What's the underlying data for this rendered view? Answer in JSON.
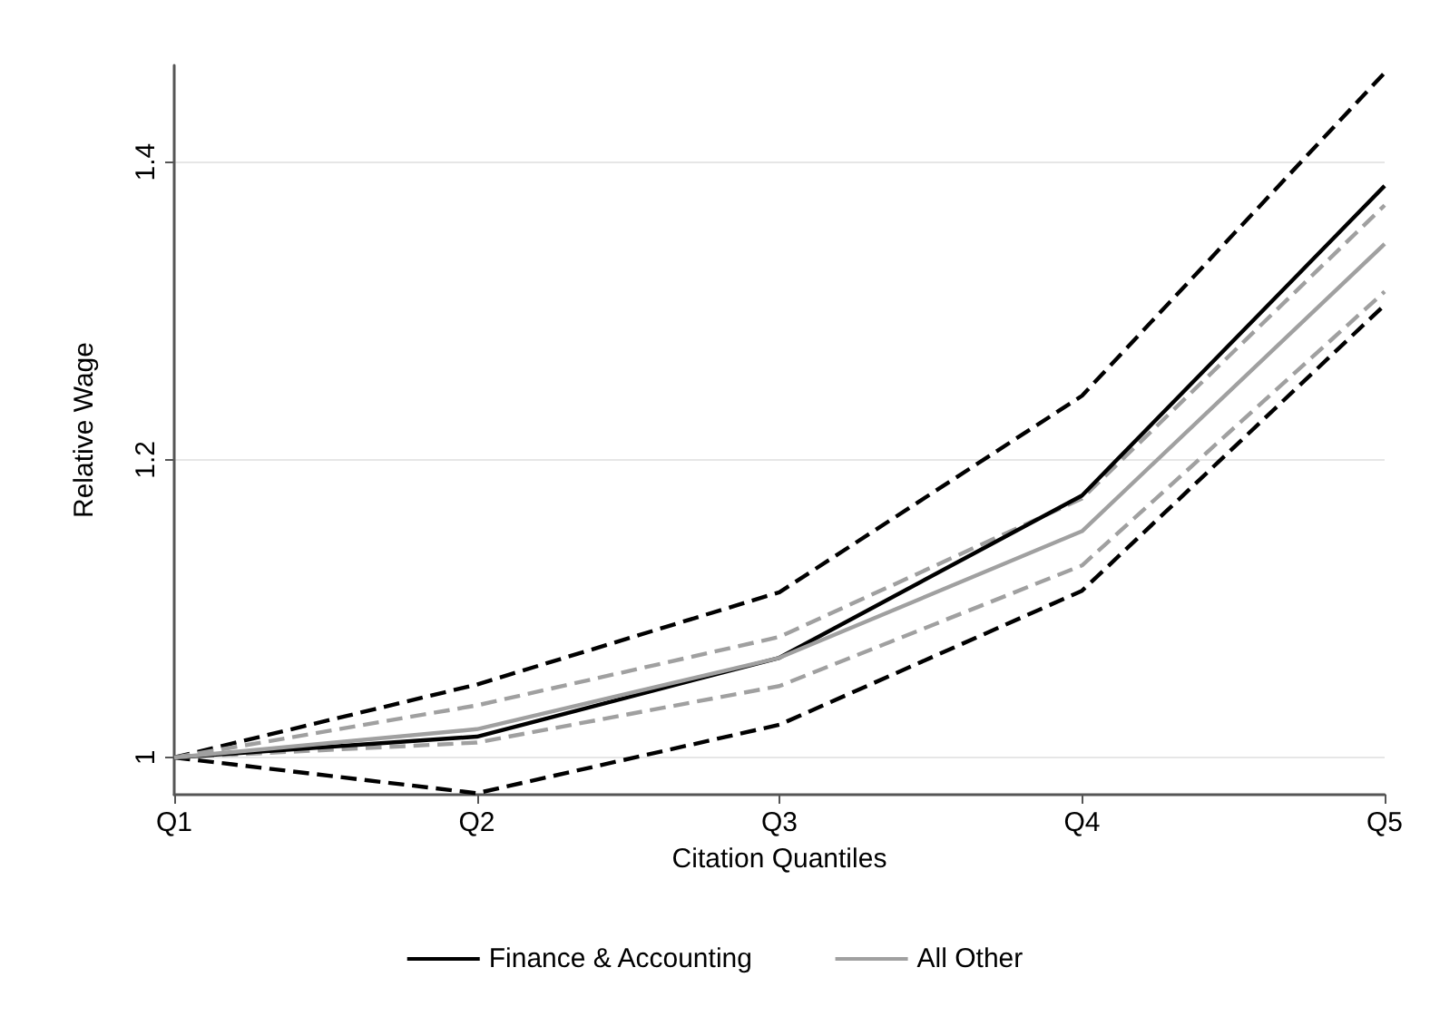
{
  "chart_data": {
    "type": "line",
    "xlabel": "Citation Quantiles",
    "ylabel": "Relative Wage",
    "categories": [
      "Q1",
      "Q2",
      "Q3",
      "Q4",
      "Q5"
    ],
    "series": [
      {
        "name": "Finance & Accounting",
        "color": "#000000",
        "values": [
          1,
          1.014,
          1.067,
          1.176,
          1.384
        ]
      },
      {
        "name": "All Other",
        "color": "#a0a0a0",
        "values": [
          1,
          1.019,
          1.067,
          1.152,
          1.345
        ]
      },
      {
        "color": "#000000",
        "line_style": "dashed",
        "values": [
          1,
          1.049,
          1.111,
          1.243,
          1.46
        ]
      },
      {
        "color": "#000000",
        "line_style": "dashed",
        "values": [
          1,
          0.976,
          1.022,
          1.112,
          1.304
        ]
      },
      {
        "color": "#a0a0a0",
        "line_style": "dashed",
        "values": [
          1,
          1.035,
          1.081,
          1.174,
          1.371
        ]
      },
      {
        "color": "#a0a0a0",
        "line_style": "dashed",
        "values": [
          1,
          1.01,
          1.048,
          1.129,
          1.313
        ]
      }
    ],
    "ylim": [
      0.975,
      1.465
    ],
    "yticks": [
      1,
      1.2,
      1.4
    ],
    "grid": "y",
    "legend": "bottom",
    "marker": "none",
    "line_style": "solid"
  }
}
